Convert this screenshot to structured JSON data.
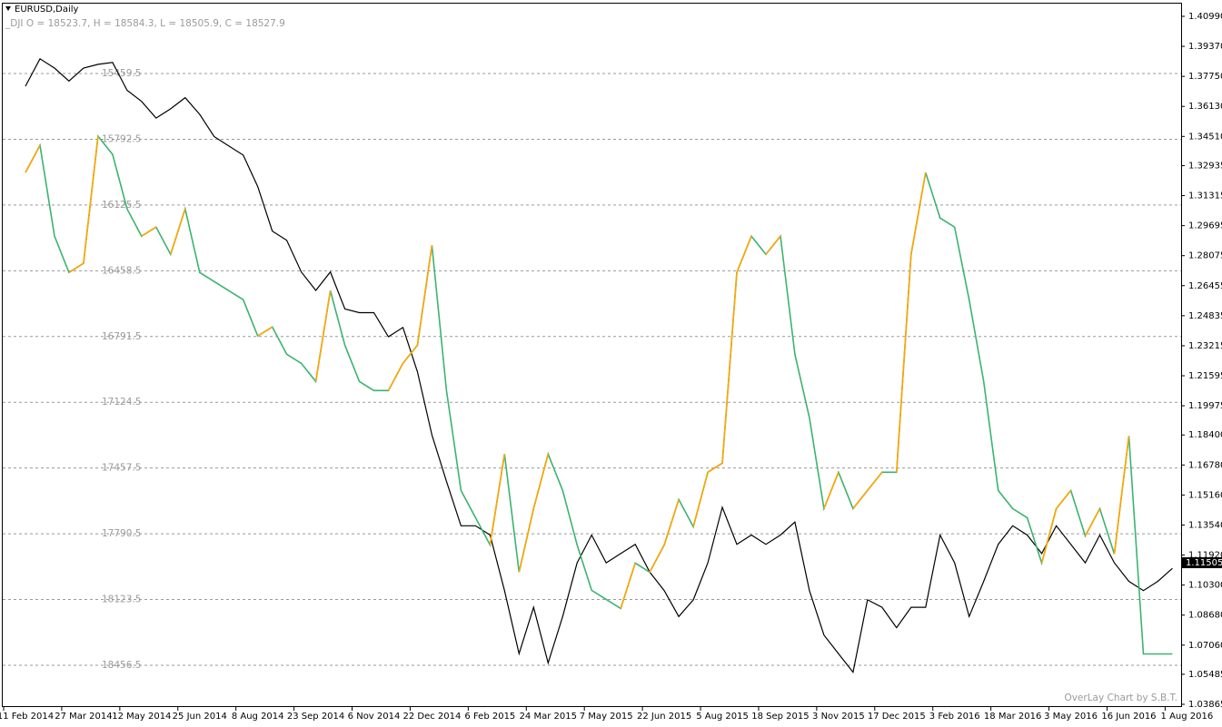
{
  "chart_data": {
    "type": "line",
    "title": "EURUSD,Daily",
    "subtitle": "_DJI O = 18523.7, H = 18584.3, L = 18505.9, C = 18527.9",
    "watermark": "OverLay Chart by S.B.T.",
    "categories": [
      "11 Feb 2014",
      null,
      null,
      null,
      "27 Mar 2014",
      null,
      null,
      null,
      "12 May 2014",
      null,
      null,
      null,
      "25 Jun 2014",
      null,
      null,
      null,
      "8 Aug 2014",
      null,
      null,
      null,
      "23 Sep 2014",
      null,
      null,
      null,
      "6 Nov 2014",
      null,
      null,
      null,
      "22 Dec 2014",
      null,
      null,
      null,
      "6 Feb 2015",
      null,
      null,
      null,
      "24 Mar 2015",
      null,
      null,
      null,
      "7 May 2015",
      null,
      null,
      null,
      "22 Jun 2015",
      null,
      null,
      null,
      "5 Aug 2015",
      null,
      null,
      null,
      "18 Sep 2015",
      null,
      null,
      null,
      "3 Nov 2015",
      null,
      null,
      null,
      "17 Dec 2015",
      null,
      null,
      null,
      "3 Feb 2016",
      null,
      null,
      null,
      "18 Mar 2016",
      null,
      null,
      null,
      "3 May 2016",
      null,
      null,
      null,
      "16 Jun 2016",
      null,
      null,
      null,
      "1 Aug 2016"
    ],
    "series": [
      {
        "color": "#000000",
        "values": [
          1.3722,
          1.387,
          1.382,
          1.375,
          1.382,
          1.384,
          1.385,
          1.37,
          1.364,
          1.355,
          1.36,
          1.366,
          1.357,
          1.345,
          1.34,
          1.335,
          1.318,
          1.294,
          1.289,
          1.272,
          1.262,
          1.272,
          1.252,
          1.25,
          1.25,
          1.237,
          1.242,
          1.218,
          1.184,
          1.159,
          1.135,
          1.135,
          1.13,
          1.1,
          1.066,
          1.091,
          1.061,
          1.086,
          1.115,
          1.13,
          1.115,
          1.12,
          1.125,
          1.11,
          1.1,
          1.086,
          1.095,
          1.115,
          1.145,
          1.125,
          1.13,
          1.125,
          1.13,
          1.137,
          1.1,
          1.076,
          1.066,
          1.056,
          1.095,
          1.091,
          1.08,
          1.091,
          1.091,
          1.13,
          1.115,
          1.086,
          1.105,
          1.125,
          1.135,
          1.13,
          1.12,
          1.135,
          1.125,
          1.115,
          1.13,
          1.115,
          1.105,
          1.1,
          1.105,
          1.112,
          null
        ]
      },
      {
        "color": "#3cb371",
        "up_color": "#ffa500",
        "axis": "y2",
        "values": [
          15961,
          15823,
          16283,
          16467,
          16421,
          15777,
          15869,
          16145,
          16283,
          16237,
          16375,
          16145,
          16467,
          16513,
          16559,
          16605,
          16789,
          16743,
          16881,
          16927,
          17019,
          16559,
          16835,
          17019,
          17065,
          17065,
          16927,
          16835,
          16329,
          17065,
          17571,
          17709,
          17847,
          17387,
          17985,
          17663,
          17387,
          17571,
          17847,
          18077,
          18123,
          18169,
          17939,
          17985,
          17847,
          17617,
          17755,
          17479,
          17433,
          16467,
          16283,
          16375,
          16283,
          16881,
          17203,
          17663,
          17479,
          17663,
          17571,
          17479,
          17479,
          16375,
          15961,
          16191,
          16237,
          16605,
          17019,
          17571,
          17663,
          17709,
          17939,
          17663,
          17571,
          17801,
          17663,
          17893,
          17295,
          18399,
          18399,
          18399,
          null
        ]
      }
    ],
    "last_price": 1.11505,
    "ylim": [
      1.03865,
      1.4099
    ],
    "yticks": [
      {
        "value": 1.4099,
        "label": "1.40990"
      },
      {
        "value": 1.3937,
        "label": "1.39370"
      },
      {
        "value": 1.3775,
        "label": "1.37750"
      },
      {
        "value": 1.3613,
        "label": "1.36130"
      },
      {
        "value": 1.3451,
        "label": "1.34510"
      },
      1.32935,
      1.31315,
      1.29695,
      1.28075,
      1.26455,
      1.24835,
      1.23215,
      1.21595,
      1.19975,
      {
        "value": 1.184,
        "label": "1.18400"
      },
      {
        "value": 1.1678,
        "label": "1.16780"
      },
      {
        "value": 1.1516,
        "label": "1.15160"
      },
      {
        "value": 1.1354,
        "label": "1.13540"
      },
      {
        "value": 1.1192,
        "label": "1.11920"
      },
      {
        "value": 1.103,
        "label": "1.10300"
      },
      {
        "value": 1.0868,
        "label": "1.08680"
      },
      {
        "value": 1.0706,
        "label": "1.07060"
      },
      1.05485,
      1.03865
    ],
    "y2lim": [
      18654.3,
      15169.7
    ],
    "y2ticks": [
      15459.5,
      15792.5,
      16125.5,
      16458.5,
      16791.5,
      17124.5,
      17457.5,
      17790.5,
      18123.5,
      18456.5
    ],
    "grid": true
  }
}
